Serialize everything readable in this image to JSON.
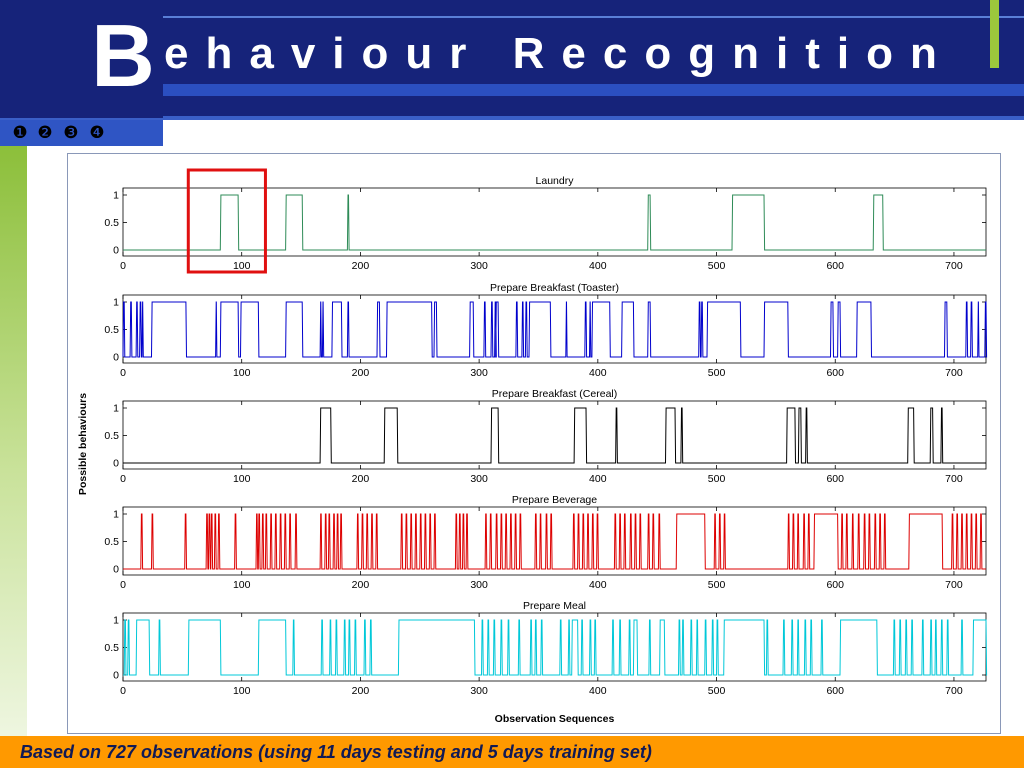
{
  "slide": {
    "title_initial": "B",
    "title_rest": "ehaviour Recognition",
    "nav": [
      "❶",
      "❷",
      "❸",
      "❹"
    ],
    "footer": "Based on 727 observations (using 11 days testing and 5 days training set)",
    "colors": {
      "header": "#16237a",
      "accent": "#9cc73c",
      "footer": "#ff9900",
      "highlight": "#e01010"
    }
  },
  "chart_data": {
    "type": "line",
    "ylabel": "Possible behaviours",
    "xlabel": "Observation Sequences",
    "xlim": [
      0,
      727
    ],
    "ylim": [
      0,
      1
    ],
    "xticks": [
      0,
      100,
      200,
      300,
      400,
      500,
      600,
      700
    ],
    "yticks": [
      0,
      0.5,
      1
    ],
    "highlight_x_range": [
      55,
      120
    ],
    "panels": [
      {
        "title": "Laundry",
        "color": "#2e8b57",
        "on": [
          [
            82,
            97
          ],
          [
            137,
            151
          ],
          [
            189,
            190
          ],
          [
            442,
            444
          ],
          [
            513,
            540
          ],
          [
            632,
            640
          ]
        ]
      },
      {
        "title": "Prepare Breakfast (Toaster)",
        "color": "#0000cc",
        "on": [
          [
            0,
            1
          ],
          [
            6,
            7
          ],
          [
            11,
            12
          ],
          [
            14,
            15
          ],
          [
            16,
            16
          ],
          [
            24,
            53
          ],
          [
            78,
            78
          ],
          [
            82,
            97
          ],
          [
            99,
            114
          ],
          [
            137,
            151
          ],
          [
            166,
            166
          ],
          [
            168,
            168
          ],
          [
            176,
            184
          ],
          [
            189,
            190
          ],
          [
            214,
            216
          ],
          [
            222,
            260
          ],
          [
            262,
            264
          ],
          [
            292,
            295
          ],
          [
            304,
            305
          ],
          [
            310,
            311
          ],
          [
            313,
            314
          ],
          [
            314,
            316
          ],
          [
            331,
            332
          ],
          [
            336,
            337
          ],
          [
            339,
            340
          ],
          [
            342,
            360
          ],
          [
            373,
            373
          ],
          [
            389,
            390
          ],
          [
            393,
            393
          ],
          [
            395,
            410
          ],
          [
            420,
            430
          ],
          [
            442,
            444
          ],
          [
            485,
            486
          ],
          [
            487,
            488
          ],
          [
            492,
            520
          ],
          [
            540,
            560
          ],
          [
            596,
            598
          ],
          [
            602,
            604
          ],
          [
            618,
            630
          ],
          [
            692,
            694
          ],
          [
            710,
            711
          ],
          [
            714,
            715
          ],
          [
            720,
            720
          ],
          [
            726,
            727
          ]
        ]
      },
      {
        "title": "Prepare Breakfast (Cereal)",
        "color": "#000000",
        "on": [
          [
            166,
            175
          ],
          [
            220,
            231
          ],
          [
            310,
            316
          ],
          [
            380,
            390
          ],
          [
            415,
            416
          ],
          [
            457,
            465
          ],
          [
            470,
            471
          ],
          [
            559,
            566
          ],
          [
            569,
            571
          ],
          [
            575,
            576
          ],
          [
            661,
            666
          ],
          [
            680,
            682
          ],
          [
            689,
            690
          ]
        ]
      },
      {
        "title": "Prepare Beverage",
        "color": "#dd0000",
        "on": [
          [
            15,
            16
          ],
          [
            24,
            25
          ],
          [
            52,
            53
          ],
          [
            70,
            71
          ],
          [
            72,
            73
          ],
          [
            74,
            75
          ],
          [
            77,
            78
          ],
          [
            80,
            81
          ],
          [
            94,
            95
          ],
          [
            112,
            113
          ],
          [
            114,
            115
          ],
          [
            117,
            118
          ],
          [
            120,
            121
          ],
          [
            124,
            125
          ],
          [
            128,
            129
          ],
          [
            132,
            133
          ],
          [
            136,
            137
          ],
          [
            140,
            141
          ],
          [
            145,
            146
          ],
          [
            166,
            167
          ],
          [
            170,
            171
          ],
          [
            173,
            174
          ],
          [
            177,
            178
          ],
          [
            180,
            181
          ],
          [
            183,
            184
          ],
          [
            197,
            198
          ],
          [
            201,
            202
          ],
          [
            205,
            206
          ],
          [
            209,
            210
          ],
          [
            213,
            214
          ],
          [
            234,
            235
          ],
          [
            238,
            239
          ],
          [
            242,
            243
          ],
          [
            246,
            247
          ],
          [
            250,
            251
          ],
          [
            254,
            255
          ],
          [
            258,
            259
          ],
          [
            262,
            263
          ],
          [
            280,
            281
          ],
          [
            283,
            284
          ],
          [
            286,
            287
          ],
          [
            289,
            290
          ],
          [
            305,
            306
          ],
          [
            309,
            310
          ],
          [
            314,
            315
          ],
          [
            318,
            319
          ],
          [
            322,
            323
          ],
          [
            326,
            327
          ],
          [
            330,
            331
          ],
          [
            334,
            335
          ],
          [
            347,
            348
          ],
          [
            351,
            352
          ],
          [
            356,
            357
          ],
          [
            360,
            361
          ],
          [
            379,
            380
          ],
          [
            383,
            384
          ],
          [
            387,
            388
          ],
          [
            391,
            392
          ],
          [
            395,
            396
          ],
          [
            399,
            400
          ],
          [
            414,
            415
          ],
          [
            418,
            419
          ],
          [
            422,
            423
          ],
          [
            427,
            428
          ],
          [
            431,
            432
          ],
          [
            435,
            436
          ],
          [
            442,
            443
          ],
          [
            446,
            447
          ],
          [
            451,
            452
          ],
          [
            466,
            490
          ],
          [
            498,
            499
          ],
          [
            502,
            503
          ],
          [
            506,
            507
          ],
          [
            560,
            561
          ],
          [
            564,
            565
          ],
          [
            568,
            569
          ],
          [
            573,
            574
          ],
          [
            577,
            578
          ],
          [
            582,
            602
          ],
          [
            605,
            606
          ],
          [
            609,
            610
          ],
          [
            614,
            615
          ],
          [
            619,
            620
          ],
          [
            624,
            625
          ],
          [
            628,
            629
          ],
          [
            633,
            634
          ],
          [
            637,
            638
          ],
          [
            641,
            642
          ],
          [
            662,
            690
          ],
          [
            698,
            699
          ],
          [
            702,
            703
          ],
          [
            706,
            707
          ],
          [
            710,
            711
          ],
          [
            714,
            715
          ],
          [
            718,
            719
          ],
          [
            722,
            723
          ]
        ]
      },
      {
        "title": "Prepare Meal",
        "color": "#00c8d8",
        "on": [
          [
            1,
            2
          ],
          [
            4,
            5
          ],
          [
            11,
            22
          ],
          [
            30,
            31
          ],
          [
            55,
            82
          ],
          [
            114,
            137
          ],
          [
            143,
            144
          ],
          [
            167,
            168
          ],
          [
            174,
            175
          ],
          [
            179,
            180
          ],
          [
            186,
            187
          ],
          [
            190,
            191
          ],
          [
            195,
            196
          ],
          [
            203,
            204
          ],
          [
            208,
            209
          ],
          [
            232,
            296
          ],
          [
            302,
            303
          ],
          [
            307,
            308
          ],
          [
            312,
            313
          ],
          [
            318,
            319
          ],
          [
            324,
            325
          ],
          [
            333,
            334
          ],
          [
            343,
            344
          ],
          [
            347,
            348
          ],
          [
            352,
            353
          ],
          [
            368,
            369
          ],
          [
            375,
            376
          ],
          [
            378,
            383
          ],
          [
            386,
            387
          ],
          [
            393,
            394
          ],
          [
            397,
            398
          ],
          [
            412,
            413
          ],
          [
            418,
            419
          ],
          [
            426,
            427
          ],
          [
            430,
            433
          ],
          [
            443,
            444
          ],
          [
            452,
            456
          ],
          [
            468,
            469
          ],
          [
            471,
            472
          ],
          [
            478,
            479
          ],
          [
            483,
            484
          ],
          [
            490,
            491
          ],
          [
            496,
            497
          ],
          [
            500,
            501
          ],
          [
            506,
            540
          ],
          [
            542,
            543
          ],
          [
            556,
            557
          ],
          [
            563,
            564
          ],
          [
            568,
            569
          ],
          [
            574,
            575
          ],
          [
            579,
            580
          ],
          [
            588,
            589
          ],
          [
            604,
            635
          ],
          [
            649,
            650
          ],
          [
            654,
            655
          ],
          [
            659,
            660
          ],
          [
            664,
            665
          ],
          [
            673,
            674
          ],
          [
            680,
            681
          ],
          [
            684,
            685
          ],
          [
            689,
            690
          ],
          [
            694,
            695
          ],
          [
            706,
            707
          ],
          [
            716,
            727
          ]
        ]
      }
    ]
  }
}
